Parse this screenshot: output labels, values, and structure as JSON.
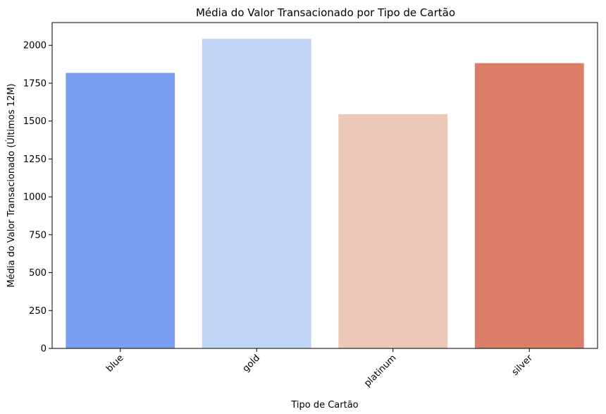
{
  "chart_data": {
    "type": "bar",
    "title": "Média do Valor Transacionado por Tipo de Cartão",
    "xlabel": "Tipo de Cartão",
    "ylabel": "Média do Valor Transacionado (Últimos 12M)",
    "categories": [
      "blue",
      "gold",
      "platinum",
      "silver"
    ],
    "values": [
      1818,
      2042,
      1545,
      1882
    ],
    "colors": [
      "#7b9ff2",
      "#c0d4f5",
      "#ebc8b8",
      "#dc7d67"
    ],
    "ylim": [
      0,
      2150
    ],
    "yticks": [
      0,
      250,
      500,
      750,
      1000,
      1250,
      1500,
      1750,
      2000
    ],
    "xtick_rotation": 45,
    "grid": false,
    "legend": "none"
  }
}
